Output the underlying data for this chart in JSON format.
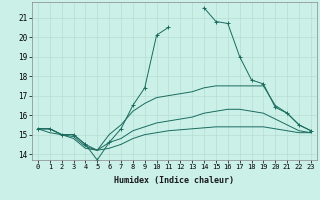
{
  "title": "",
  "xlabel": "Humidex (Indice chaleur)",
  "ylabel": "",
  "bg_color": "#caf0e8",
  "line_color": "#1a6b5e",
  "grid_color": "#b8ddd4",
  "xlim": [
    -0.5,
    23.5
  ],
  "ylim": [
    13.7,
    21.8
  ],
  "yticks": [
    14,
    15,
    16,
    17,
    18,
    19,
    20,
    21
  ],
  "xticks": [
    0,
    1,
    2,
    3,
    4,
    5,
    6,
    7,
    8,
    9,
    10,
    11,
    12,
    13,
    14,
    15,
    16,
    17,
    18,
    19,
    20,
    21,
    22,
    23
  ],
  "series": [
    {
      "x": [
        0,
        1,
        2,
        3,
        4,
        5,
        6,
        7,
        8,
        9,
        10,
        11,
        12,
        13,
        14,
        15,
        16,
        17,
        18,
        19,
        20,
        21,
        22,
        23
      ],
      "y": [
        15.3,
        15.3,
        15.0,
        15.0,
        14.5,
        13.7,
        14.6,
        15.3,
        16.5,
        17.4,
        20.1,
        20.5,
        null,
        null,
        21.5,
        20.8,
        20.7,
        19.0,
        17.8,
        17.6,
        16.4,
        16.1,
        15.5,
        15.2
      ],
      "marker": "+"
    },
    {
      "x": [
        0,
        1,
        2,
        3,
        4,
        5,
        6,
        7,
        8,
        9,
        10,
        11,
        12,
        13,
        14,
        15,
        16,
        17,
        18,
        19,
        20,
        21,
        22,
        23
      ],
      "y": [
        15.3,
        15.3,
        15.0,
        15.0,
        14.5,
        14.2,
        15.0,
        15.5,
        16.2,
        16.6,
        16.9,
        17.0,
        17.1,
        17.2,
        17.4,
        17.5,
        17.5,
        17.5,
        17.5,
        17.5,
        16.5,
        16.1,
        15.5,
        15.2
      ],
      "marker": null
    },
    {
      "x": [
        0,
        1,
        2,
        3,
        4,
        5,
        6,
        7,
        8,
        9,
        10,
        11,
        12,
        13,
        14,
        15,
        16,
        17,
        18,
        19,
        20,
        21,
        22,
        23
      ],
      "y": [
        15.3,
        15.3,
        15.0,
        14.8,
        14.3,
        14.2,
        14.6,
        14.8,
        15.2,
        15.4,
        15.6,
        15.7,
        15.8,
        15.9,
        16.1,
        16.2,
        16.3,
        16.3,
        16.2,
        16.1,
        15.8,
        15.5,
        15.2,
        15.1
      ],
      "marker": null
    },
    {
      "x": [
        0,
        1,
        2,
        3,
        4,
        5,
        6,
        7,
        8,
        9,
        10,
        11,
        12,
        13,
        14,
        15,
        16,
        17,
        18,
        19,
        20,
        21,
        22,
        23
      ],
      "y": [
        15.3,
        15.1,
        15.0,
        14.9,
        14.4,
        14.2,
        14.3,
        14.5,
        14.8,
        15.0,
        15.1,
        15.2,
        15.25,
        15.3,
        15.35,
        15.4,
        15.4,
        15.4,
        15.4,
        15.4,
        15.3,
        15.2,
        15.1,
        15.1
      ],
      "marker": null
    }
  ]
}
